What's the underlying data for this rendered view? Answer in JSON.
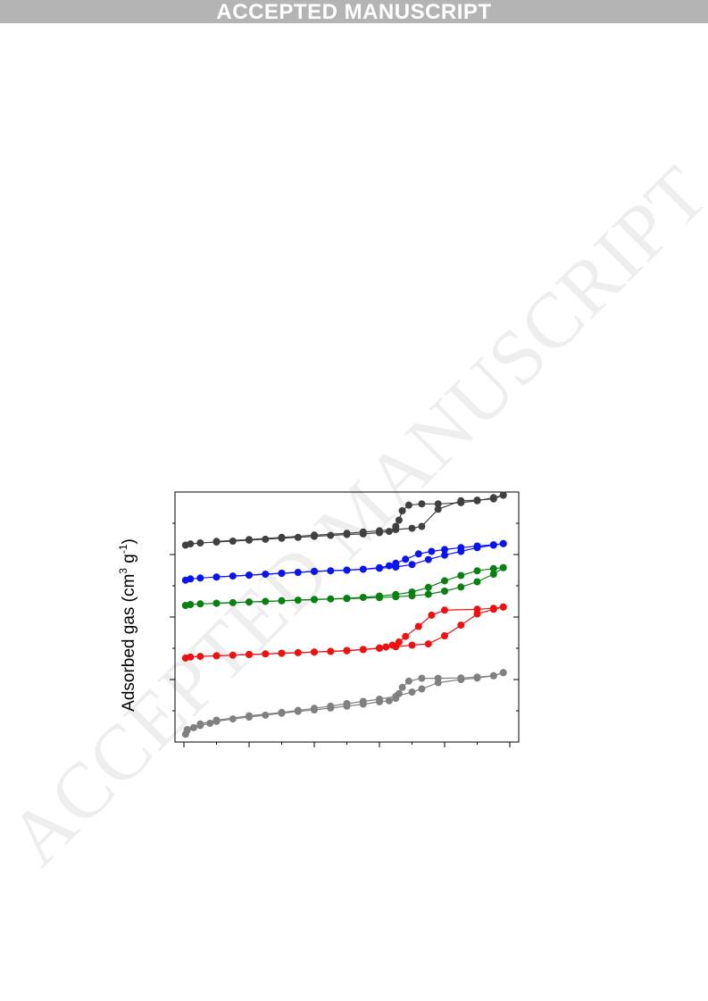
{
  "header": {
    "banner_text": "ACCEPTED MANUSCRIPT"
  },
  "watermark": {
    "text": "ACCEPTED MANUSCRIPT"
  },
  "colors": {
    "banner": "#b4b4b4",
    "watermark": "#c8c8c8"
  },
  "chart_data": {
    "type": "scatter",
    "title": "",
    "xlabel": "",
    "ylabel": "Adsorbed gas (cm3 g-1)",
    "ylabel_parts": {
      "main": "Adsorbed gas (cm",
      "sup1": "3",
      "mid": " g",
      "sup2": "-1",
      "end": ")"
    },
    "xlim": [
      0,
      1
    ],
    "ylim": [
      0,
      8
    ],
    "x_major_ticks": [
      0,
      0.2,
      0.4,
      0.6,
      0.8,
      1.0
    ],
    "x_minor_ticks": [
      0.1,
      0.3,
      0.5,
      0.7,
      0.9
    ],
    "y_major_ticks": [
      2,
      4,
      6
    ],
    "y_minor_ticks": [
      1,
      3,
      5,
      7
    ],
    "tick_labels_shown": false,
    "legend": "none",
    "grid": false,
    "series": [
      {
        "color": "#808080",
        "adsorption": [
          [
            0.005,
            0.25
          ],
          [
            0.01,
            0.37
          ],
          [
            0.03,
            0.46
          ],
          [
            0.05,
            0.53
          ],
          [
            0.08,
            0.6
          ],
          [
            0.1,
            0.66
          ],
          [
            0.15,
            0.74
          ],
          [
            0.2,
            0.8
          ],
          [
            0.25,
            0.86
          ],
          [
            0.3,
            0.92
          ],
          [
            0.35,
            0.98
          ],
          [
            0.4,
            1.03
          ],
          [
            0.45,
            1.09
          ],
          [
            0.5,
            1.15
          ],
          [
            0.55,
            1.21
          ],
          [
            0.6,
            1.29
          ],
          [
            0.63,
            1.32
          ],
          [
            0.65,
            1.4
          ],
          [
            0.66,
            1.55
          ],
          [
            0.67,
            1.75
          ],
          [
            0.69,
            1.95
          ],
          [
            0.73,
            2.04
          ],
          [
            0.78,
            2.04
          ],
          [
            0.85,
            2.05
          ],
          [
            0.9,
            2.08
          ],
          [
            0.95,
            2.12
          ],
          [
            0.98,
            2.22
          ]
        ],
        "desorption": [
          [
            0.98,
            2.22
          ],
          [
            0.95,
            2.12
          ],
          [
            0.9,
            2.05
          ],
          [
            0.85,
            2.0
          ],
          [
            0.78,
            1.9
          ],
          [
            0.73,
            1.7
          ],
          [
            0.7,
            1.6
          ],
          [
            0.65,
            1.46
          ],
          [
            0.6,
            1.37
          ],
          [
            0.55,
            1.3
          ],
          [
            0.5,
            1.23
          ],
          [
            0.45,
            1.15
          ],
          [
            0.4,
            1.08
          ],
          [
            0.35,
            1.01
          ],
          [
            0.3,
            0.95
          ],
          [
            0.2,
            0.84
          ],
          [
            0.1,
            0.7
          ],
          [
            0.05,
            0.58
          ],
          [
            0.01,
            0.4
          ]
        ]
      },
      {
        "color": "#ee1111",
        "adsorption": [
          [
            0.005,
            2.69
          ],
          [
            0.02,
            2.72
          ],
          [
            0.05,
            2.74
          ],
          [
            0.1,
            2.76
          ],
          [
            0.15,
            2.78
          ],
          [
            0.2,
            2.8
          ],
          [
            0.25,
            2.82
          ],
          [
            0.3,
            2.84
          ],
          [
            0.35,
            2.86
          ],
          [
            0.4,
            2.88
          ],
          [
            0.45,
            2.9
          ],
          [
            0.5,
            2.93
          ],
          [
            0.55,
            2.96
          ],
          [
            0.6,
            3.0
          ],
          [
            0.62,
            3.04
          ],
          [
            0.64,
            3.1
          ],
          [
            0.66,
            3.2
          ],
          [
            0.68,
            3.38
          ],
          [
            0.72,
            3.7
          ],
          [
            0.76,
            4.06
          ],
          [
            0.8,
            4.22
          ],
          [
            0.9,
            4.25
          ],
          [
            0.95,
            4.28
          ],
          [
            0.98,
            4.32
          ]
        ],
        "desorption": [
          [
            0.98,
            4.32
          ],
          [
            0.95,
            4.25
          ],
          [
            0.9,
            4.1
          ],
          [
            0.85,
            3.74
          ],
          [
            0.8,
            3.4
          ],
          [
            0.75,
            3.14
          ],
          [
            0.7,
            3.1
          ],
          [
            0.65,
            3.05
          ],
          [
            0.6,
            3.01
          ],
          [
            0.55,
            2.96
          ],
          [
            0.5,
            2.92
          ],
          [
            0.4,
            2.88
          ],
          [
            0.3,
            2.84
          ],
          [
            0.2,
            2.8
          ],
          [
            0.1,
            2.76
          ]
        ]
      },
      {
        "color": "#0a8010",
        "adsorption": [
          [
            0.005,
            4.37
          ],
          [
            0.02,
            4.4
          ],
          [
            0.05,
            4.42
          ],
          [
            0.1,
            4.44
          ],
          [
            0.15,
            4.46
          ],
          [
            0.2,
            4.48
          ],
          [
            0.25,
            4.5
          ],
          [
            0.3,
            4.52
          ],
          [
            0.35,
            4.54
          ],
          [
            0.4,
            4.56
          ],
          [
            0.45,
            4.58
          ],
          [
            0.5,
            4.6
          ],
          [
            0.55,
            4.63
          ],
          [
            0.6,
            4.67
          ],
          [
            0.65,
            4.72
          ],
          [
            0.7,
            4.8
          ],
          [
            0.75,
            4.95
          ],
          [
            0.8,
            5.16
          ],
          [
            0.85,
            5.33
          ],
          [
            0.9,
            5.48
          ],
          [
            0.95,
            5.55
          ],
          [
            0.98,
            5.58
          ]
        ],
        "desorption": [
          [
            0.98,
            5.58
          ],
          [
            0.95,
            5.37
          ],
          [
            0.9,
            5.13
          ],
          [
            0.85,
            4.96
          ],
          [
            0.8,
            4.83
          ],
          [
            0.75,
            4.73
          ],
          [
            0.7,
            4.68
          ],
          [
            0.65,
            4.65
          ],
          [
            0.6,
            4.62
          ],
          [
            0.5,
            4.59
          ],
          [
            0.4,
            4.56
          ],
          [
            0.3,
            4.52
          ],
          [
            0.2,
            4.48
          ],
          [
            0.1,
            4.44
          ]
        ]
      },
      {
        "color": "#0a14ee",
        "adsorption": [
          [
            0.005,
            5.18
          ],
          [
            0.02,
            5.22
          ],
          [
            0.05,
            5.25
          ],
          [
            0.1,
            5.28
          ],
          [
            0.15,
            5.31
          ],
          [
            0.2,
            5.34
          ],
          [
            0.25,
            5.37
          ],
          [
            0.3,
            5.4
          ],
          [
            0.35,
            5.43
          ],
          [
            0.4,
            5.46
          ],
          [
            0.45,
            5.48
          ],
          [
            0.5,
            5.5
          ],
          [
            0.55,
            5.53
          ],
          [
            0.6,
            5.58
          ],
          [
            0.63,
            5.64
          ],
          [
            0.65,
            5.72
          ],
          [
            0.68,
            5.85
          ],
          [
            0.72,
            6.02
          ],
          [
            0.76,
            6.1
          ],
          [
            0.8,
            6.16
          ],
          [
            0.85,
            6.22
          ],
          [
            0.9,
            6.27
          ],
          [
            0.95,
            6.31
          ],
          [
            0.98,
            6.35
          ]
        ],
        "desorption": [
          [
            0.98,
            6.35
          ],
          [
            0.95,
            6.3
          ],
          [
            0.9,
            6.22
          ],
          [
            0.85,
            6.1
          ],
          [
            0.8,
            5.98
          ],
          [
            0.75,
            5.84
          ],
          [
            0.7,
            5.68
          ],
          [
            0.65,
            5.6
          ],
          [
            0.6,
            5.56
          ],
          [
            0.5,
            5.5
          ],
          [
            0.4,
            5.46
          ],
          [
            0.3,
            5.4
          ],
          [
            0.2,
            5.34
          ],
          [
            0.1,
            5.28
          ]
        ]
      },
      {
        "color": "#404040",
        "adsorption": [
          [
            0.005,
            6.3
          ],
          [
            0.02,
            6.34
          ],
          [
            0.05,
            6.37
          ],
          [
            0.1,
            6.4
          ],
          [
            0.15,
            6.43
          ],
          [
            0.2,
            6.46
          ],
          [
            0.25,
            6.49
          ],
          [
            0.3,
            6.52
          ],
          [
            0.35,
            6.55
          ],
          [
            0.4,
            6.58
          ],
          [
            0.45,
            6.61
          ],
          [
            0.5,
            6.64
          ],
          [
            0.55,
            6.66
          ],
          [
            0.6,
            6.7
          ],
          [
            0.63,
            6.74
          ],
          [
            0.65,
            6.9
          ],
          [
            0.66,
            7.1
          ],
          [
            0.67,
            7.4
          ],
          [
            0.69,
            7.58
          ],
          [
            0.73,
            7.62
          ],
          [
            0.78,
            7.62
          ],
          [
            0.85,
            7.66
          ],
          [
            0.9,
            7.72
          ],
          [
            0.95,
            7.82
          ],
          [
            0.98,
            7.9
          ]
        ],
        "desorption": [
          [
            0.98,
            7.9
          ],
          [
            0.95,
            7.78
          ],
          [
            0.9,
            7.74
          ],
          [
            0.85,
            7.72
          ],
          [
            0.78,
            7.45
          ],
          [
            0.73,
            6.9
          ],
          [
            0.7,
            6.84
          ],
          [
            0.65,
            6.8
          ],
          [
            0.6,
            6.76
          ],
          [
            0.55,
            6.72
          ],
          [
            0.5,
            6.68
          ],
          [
            0.4,
            6.62
          ],
          [
            0.3,
            6.55
          ],
          [
            0.2,
            6.48
          ],
          [
            0.1,
            6.42
          ]
        ]
      }
    ]
  }
}
